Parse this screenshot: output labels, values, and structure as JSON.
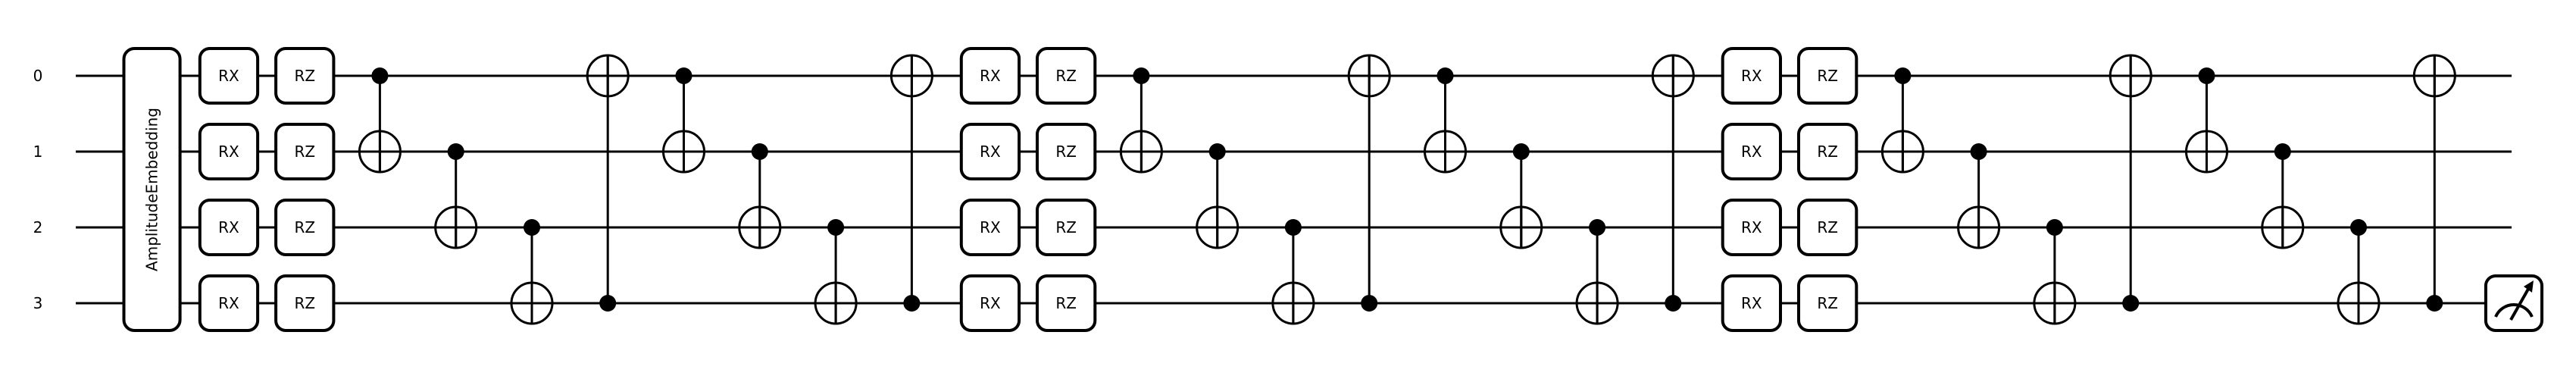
{
  "circuit": {
    "wires": [
      "0",
      "1",
      "2",
      "3"
    ],
    "embedding": {
      "label": "AmplitudeEmbedding"
    },
    "layers": [
      {
        "rotations": [
          "RX",
          "RZ"
        ]
      },
      {
        "rotations": [
          "RX",
          "RZ"
        ]
      },
      {
        "rotations": [
          "RX",
          "RZ"
        ]
      }
    ],
    "cnot_rings": 2,
    "cnot_pattern": [
      [
        0,
        1
      ],
      [
        1,
        2
      ],
      [
        2,
        3
      ],
      [
        3,
        0
      ]
    ],
    "measurement": {
      "wire": 3,
      "icon": "measure-meter-icon"
    }
  }
}
